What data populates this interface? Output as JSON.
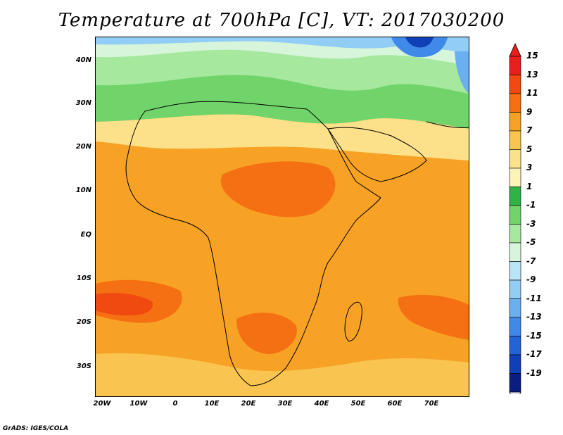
{
  "title": "Temperature at 700hPa [C], VT: 2017030200",
  "credit": "GrADS: IGES/COLA",
  "axes": {
    "lat_labels": [
      "40N",
      "30N",
      "20N",
      "10N",
      "EQ",
      "10S",
      "20S",
      "30S"
    ],
    "lon_labels": [
      "20W",
      "10W",
      "0",
      "10E",
      "20E",
      "30E",
      "40E",
      "50E",
      "60E",
      "70E"
    ]
  },
  "colorbar": {
    "labels": [
      "15",
      "13",
      "11",
      "9",
      "7",
      "5",
      "3",
      "1",
      "-1",
      "-3",
      "-5",
      "-7",
      "-9",
      "-11",
      "-13",
      "-15",
      "-17",
      "-19"
    ],
    "colors": [
      "#e8201c",
      "#f04a10",
      "#f57012",
      "#f7a225",
      "#f9c450",
      "#fce08a",
      "#fdf3b7",
      "#2fb344",
      "#70d46a",
      "#a6e89e",
      "#d7f5da",
      "#b8e5f7",
      "#92cdf5",
      "#6aaff0",
      "#3f8ae8",
      "#2264d6",
      "#1040b5",
      "#0a1d80"
    ]
  },
  "map": {
    "type": "filled-contour",
    "region": "Africa and Middle East",
    "lon_range": [
      -22,
      80
    ],
    "lat_range": [
      -37,
      45
    ]
  }
}
